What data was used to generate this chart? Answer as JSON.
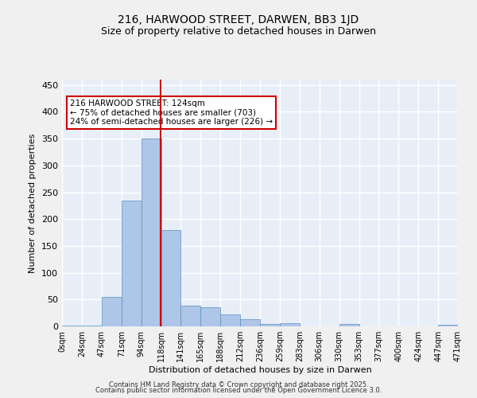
{
  "title1": "216, HARWOOD STREET, DARWEN, BB3 1JD",
  "title2": "Size of property relative to detached houses in Darwen",
  "xlabel": "Distribution of detached houses by size in Darwen",
  "ylabel": "Number of detached properties",
  "bin_labels": [
    "0sqm",
    "24sqm",
    "47sqm",
    "71sqm",
    "94sqm",
    "118sqm",
    "141sqm",
    "165sqm",
    "188sqm",
    "212sqm",
    "236sqm",
    "259sqm",
    "283sqm",
    "306sqm",
    "330sqm",
    "353sqm",
    "377sqm",
    "400sqm",
    "424sqm",
    "447sqm",
    "471sqm"
  ],
  "bar_values": [
    2,
    2,
    55,
    235,
    350,
    180,
    38,
    35,
    22,
    13,
    5,
    6,
    0,
    0,
    4,
    0,
    0,
    0,
    0,
    3
  ],
  "bar_color": "#aec6e8",
  "bar_edge_color": "#5a8fc0",
  "bar_width": 1.0,
  "property_line_x": 4.96,
  "property_line_color": "#cc0000",
  "annotation_text": "216 HARWOOD STREET: 124sqm\n← 75% of detached houses are smaller (703)\n24% of semi-detached houses are larger (226) →",
  "annotation_box_color": "#ffffff",
  "annotation_box_edge": "#cc0000",
  "ylim": [
    0,
    460
  ],
  "yticks": [
    0,
    50,
    100,
    150,
    200,
    250,
    300,
    350,
    400,
    450
  ],
  "background_color": "#e8eef8",
  "grid_color": "#ffffff",
  "footer1": "Contains HM Land Registry data © Crown copyright and database right 2025.",
  "footer2": "Contains public sector information licensed under the Open Government Licence 3.0."
}
